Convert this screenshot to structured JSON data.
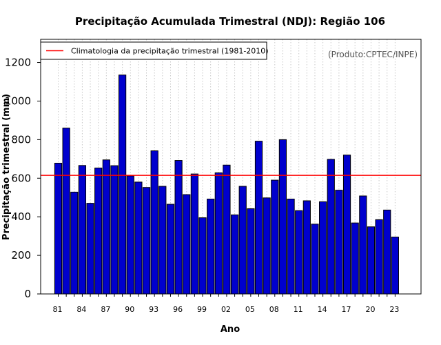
{
  "chart_data": {
    "type": "bar",
    "title": "Precipitação Acumulada Trimestral (NDJ): Região 106",
    "xlabel": "Ano",
    "ylabel": "Precipitação trimestral (mm)",
    "source_note": "(Produto:CPTEC/INPE)",
    "legend": {
      "label": "Climatologia da precipitação trimestral (1981-2010)",
      "placement": "top-left",
      "color": "#ff0000"
    },
    "climatology": 615,
    "ylim": [
      0,
      1320
    ],
    "yticks": [
      0,
      200,
      400,
      600,
      800,
      1000,
      1200
    ],
    "ytick_labels": [
      "0",
      "200",
      "400",
      "600",
      "800",
      "1000",
      "1200"
    ],
    "categories": [
      "1981",
      "1982",
      "1983",
      "1984",
      "1985",
      "1986",
      "1987",
      "1988",
      "1989",
      "1990",
      "1991",
      "1992",
      "1993",
      "1994",
      "1995",
      "1996",
      "1997",
      "1998",
      "1999",
      "2000",
      "2001",
      "2002",
      "2003",
      "2004",
      "2005",
      "2006",
      "2007",
      "2008",
      "2009",
      "2010",
      "2011",
      "2012",
      "2013",
      "2014",
      "2015",
      "2016",
      "2017",
      "2018",
      "2019",
      "2020",
      "2021",
      "2022",
      "2023"
    ],
    "values": [
      678,
      860,
      528,
      666,
      470,
      653,
      695,
      665,
      1135,
      612,
      580,
      552,
      742,
      558,
      465,
      692,
      515,
      622,
      395,
      492,
      628,
      668,
      410,
      558,
      442,
      792,
      498,
      590,
      800,
      492,
      432,
      483,
      362,
      478,
      698,
      538,
      720,
      368,
      508,
      348,
      385,
      435,
      295
    ],
    "xtick_labels": [
      {
        "year": "1981",
        "label": "81"
      },
      {
        "year": "1984",
        "label": "84"
      },
      {
        "year": "1987",
        "label": "87"
      },
      {
        "year": "1990",
        "label": "90"
      },
      {
        "year": "1993",
        "label": "93"
      },
      {
        "year": "1996",
        "label": "96"
      },
      {
        "year": "1999",
        "label": "99"
      },
      {
        "year": "2002",
        "label": "02"
      },
      {
        "year": "2005",
        "label": "05"
      },
      {
        "year": "2008",
        "label": "08"
      },
      {
        "year": "2011",
        "label": "11"
      },
      {
        "year": "2014",
        "label": "14"
      },
      {
        "year": "2017",
        "label": "17"
      },
      {
        "year": "2020",
        "label": "20"
      },
      {
        "year": "2023",
        "label": "23"
      }
    ],
    "colors": {
      "bar_fill": "#0000cd",
      "bar_stroke": "#000000",
      "climatology_line": "#ff0000",
      "grid": "#c8c8c8"
    },
    "grid": true
  }
}
